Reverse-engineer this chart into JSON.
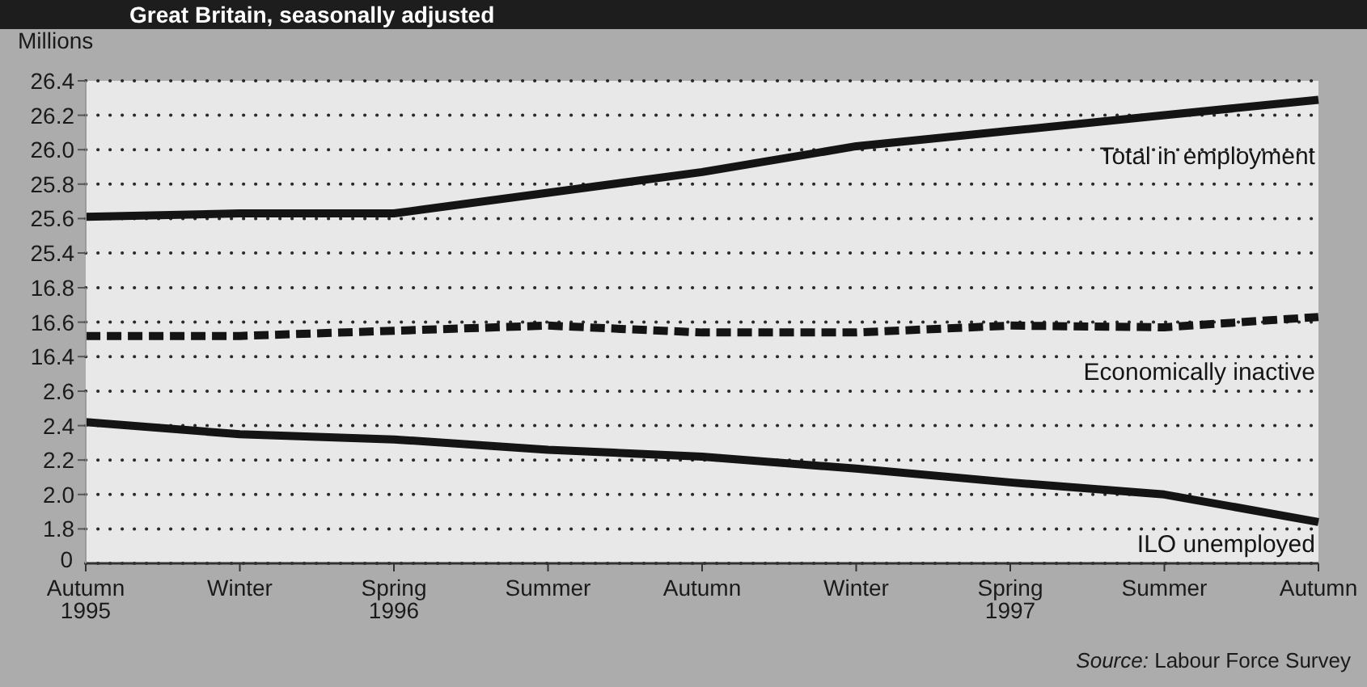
{
  "chart_data": [
    {
      "type": "line",
      "title": "Great Britain, seasonally adjusted",
      "ylabel": "Millions",
      "categories": [
        null,
        null,
        null,
        null,
        null,
        null,
        null,
        null,
        null
      ],
      "series": [
        {
          "name": "Total in employment",
          "color": "#141414",
          "values": [
            25.61,
            25.63,
            25.63,
            25.75,
            25.87,
            26.02,
            26.11,
            26.2,
            26.29
          ]
        }
      ],
      "ylim": [
        25.4,
        26.4
      ],
      "yticks": [
        25.4,
        25.6,
        25.8,
        {
          "value": 26,
          "label": "26.0"
        },
        26.2,
        26.4
      ],
      "grid": "y",
      "tick_labels": "y"
    },
    {
      "type": "line",
      "categories": [
        null,
        null,
        null,
        null,
        null,
        null,
        null,
        null,
        null
      ],
      "series": [
        {
          "name": "Economically inactive",
          "color": "#141414",
          "line_style": "dashed",
          "values": [
            16.52,
            16.52,
            16.55,
            16.58,
            16.54,
            16.54,
            16.58,
            16.57,
            16.63
          ]
        }
      ],
      "ylim": [
        16.4,
        16.8
      ],
      "yticks": [
        16.4,
        16.6,
        16.8
      ],
      "grid": "y",
      "tick_labels": "y"
    },
    {
      "type": "line",
      "categories": [
        "Autumn\n1995",
        "Winter",
        "Spring\n1996",
        "Summer",
        "Autumn",
        "Winter",
        "Spring\n1997",
        "Summer",
        "Autumn"
      ],
      "series": [
        {
          "name": "ILO unemployed",
          "color": "#141414",
          "values": [
            2.42,
            2.35,
            2.32,
            2.26,
            2.22,
            2.15,
            2.07,
            2.0,
            1.84
          ]
        }
      ],
      "ylim": [
        1.8,
        2.6
      ],
      "yticks": [
        1.8,
        {
          "value": 2,
          "label": "2.0"
        },
        2.2,
        2.4,
        2.6
      ],
      "grid": "y",
      "annotations": [
        "0",
        "Source: Labour Force Survey"
      ]
    }
  ]
}
